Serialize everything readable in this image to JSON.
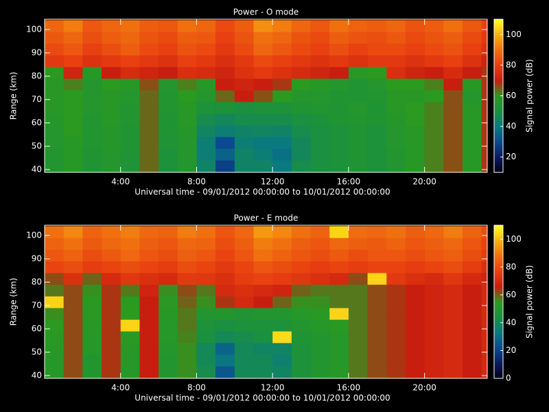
{
  "chart_data": [
    {
      "type": "heatmap",
      "title": "Power - O mode",
      "xlabel": "Universal time - 09/01/2012 00:00:00 to 10/01/2012 00:00:00",
      "ylabel": "Range (km)",
      "colorbar_label": "Signal power (dB)",
      "xlim": [
        0,
        23.3
      ],
      "ylim": [
        38.8,
        104.4
      ],
      "zlim": [
        10,
        110
      ],
      "xticks": [
        {
          "value": 4,
          "label": "4:00"
        },
        {
          "value": 8,
          "label": "8:00"
        },
        {
          "value": 12,
          "label": "12:00"
        },
        {
          "value": 16,
          "label": "16:00"
        },
        {
          "value": 20,
          "label": "20:00"
        }
      ],
      "yticks": [
        40,
        50,
        60,
        70,
        80,
        90,
        100
      ],
      "zticks": [
        20,
        40,
        60,
        80,
        100
      ],
      "colorscale": [
        "#000010",
        "#0a1a60",
        "#0a4a90",
        "#0a7a80",
        "#1a9040",
        "#2a9a20",
        "#c81e10",
        "#e84010",
        "#f07010",
        "#f8b010",
        "#ffff20"
      ],
      "x_bins": [
        0,
        1,
        2,
        3,
        4,
        5,
        6,
        7,
        8,
        9,
        10,
        11,
        12,
        13,
        14,
        15,
        16,
        17,
        18,
        19,
        20,
        21,
        22,
        23,
        23.3
      ],
      "y_bins": [
        39,
        44,
        49,
        54,
        59,
        64,
        69,
        74,
        79,
        84,
        89,
        94,
        99,
        104
      ],
      "z": [
        [
          55,
          58,
          54,
          56,
          53,
          64,
          52,
          56,
          44,
          28,
          44,
          44,
          40,
          48,
          50,
          52,
          54,
          52,
          55,
          58,
          62,
          66,
          58,
          68
        ],
        [
          55,
          58,
          54,
          56,
          53,
          64,
          52,
          56,
          42,
          35,
          44,
          42,
          38,
          46,
          50,
          52,
          54,
          52,
          55,
          58,
          62,
          66,
          58,
          68
        ],
        [
          56,
          58,
          55,
          57,
          54,
          64,
          53,
          56,
          42,
          30,
          42,
          40,
          40,
          46,
          50,
          52,
          54,
          52,
          56,
          58,
          62,
          66,
          58,
          68
        ],
        [
          56,
          60,
          55,
          57,
          54,
          64,
          54,
          57,
          45,
          42,
          44,
          45,
          44,
          48,
          50,
          52,
          54,
          52,
          56,
          58,
          62,
          66,
          58,
          68
        ],
        [
          57,
          60,
          55,
          58,
          55,
          64,
          54,
          58,
          48,
          46,
          48,
          48,
          48,
          50,
          52,
          54,
          55,
          54,
          57,
          60,
          62,
          66,
          58,
          68
        ],
        [
          58,
          60,
          56,
          58,
          55,
          64,
          55,
          58,
          52,
          52,
          50,
          52,
          52,
          54,
          55,
          54,
          56,
          54,
          58,
          60,
          62,
          66,
          58,
          68
        ],
        [
          58,
          60,
          56,
          58,
          56,
          64,
          55,
          60,
          56,
          64,
          70,
          66,
          60,
          56,
          56,
          54,
          54,
          55,
          58,
          58,
          60,
          66,
          56,
          68
        ],
        [
          58,
          62,
          56,
          60,
          58,
          66,
          56,
          62,
          58,
          70,
          72,
          70,
          68,
          60,
          58,
          56,
          54,
          56,
          60,
          60,
          62,
          70,
          58,
          68
        ],
        [
          60,
          72,
          58,
          70,
          74,
          72,
          70,
          75,
          74,
          72,
          76,
          78,
          76,
          74,
          72,
          70,
          58,
          60,
          75,
          72,
          70,
          74,
          70,
          68
        ],
        [
          78,
          80,
          76,
          78,
          80,
          78,
          76,
          80,
          78,
          75,
          78,
          82,
          80,
          78,
          76,
          78,
          76,
          78,
          78,
          76,
          78,
          80,
          76,
          72
        ],
        [
          82,
          85,
          80,
          83,
          86,
          82,
          80,
          84,
          82,
          78,
          82,
          88,
          85,
          82,
          80,
          83,
          80,
          82,
          82,
          80,
          82,
          84,
          80,
          76
        ],
        [
          85,
          88,
          83,
          86,
          88,
          84,
          82,
          86,
          85,
          80,
          84,
          90,
          88,
          84,
          82,
          86,
          84,
          83,
          85,
          82,
          84,
          86,
          82,
          78
        ],
        [
          88,
          92,
          85,
          88,
          90,
          86,
          85,
          90,
          88,
          82,
          86,
          95,
          92,
          88,
          85,
          90,
          87,
          86,
          88,
          84,
          86,
          90,
          85,
          80
        ]
      ]
    },
    {
      "type": "heatmap",
      "title": "Power - E mode",
      "xlabel": "Universal time - 09/01/2012 00:00:00 to 10/01/2012 00:00:00",
      "ylabel": "Range (km)",
      "colorbar_label": "Signal power (dB)",
      "xlim": [
        0,
        23.3
      ],
      "ylim": [
        38.8,
        104.4
      ],
      "zlim": [
        0,
        110
      ],
      "xticks": [
        {
          "value": 4,
          "label": "4:00"
        },
        {
          "value": 8,
          "label": "8:00"
        },
        {
          "value": 12,
          "label": "12:00"
        },
        {
          "value": 16,
          "label": "16:00"
        },
        {
          "value": 20,
          "label": "20:00"
        }
      ],
      "yticks": [
        40,
        50,
        60,
        70,
        80,
        90,
        100
      ],
      "zticks": [
        0,
        20,
        40,
        60,
        80,
        100
      ],
      "colorscale": [
        "#000010",
        "#0a1a60",
        "#0a4a90",
        "#0a7a80",
        "#1a9040",
        "#2a9a20",
        "#c81e10",
        "#e84010",
        "#f07010",
        "#f8b010",
        "#ffff20"
      ],
      "x_bins": [
        0,
        1,
        2,
        3,
        4,
        5,
        6,
        7,
        8,
        9,
        10,
        11,
        12,
        13,
        14,
        15,
        16,
        17,
        18,
        19,
        20,
        21,
        22,
        23,
        23.3
      ],
      "y_bins": [
        39,
        44,
        49,
        54,
        59,
        64,
        69,
        74,
        79,
        84,
        89,
        94,
        99,
        104
      ],
      "z": [
        [
          52,
          62,
          50,
          64,
          52,
          66,
          50,
          56,
          42,
          25,
          40,
          40,
          38,
          46,
          50,
          52,
          58,
          62,
          64,
          66,
          68,
          70,
          66,
          70
        ],
        [
          52,
          62,
          50,
          64,
          52,
          66,
          50,
          56,
          40,
          32,
          40,
          40,
          36,
          46,
          50,
          52,
          58,
          62,
          64,
          66,
          68,
          70,
          66,
          70
        ],
        [
          53,
          62,
          52,
          64,
          53,
          66,
          51,
          56,
          40,
          28,
          40,
          38,
          38,
          46,
          50,
          52,
          58,
          62,
          64,
          66,
          68,
          70,
          66,
          70
        ],
        [
          54,
          62,
          52,
          64,
          54,
          66,
          52,
          57,
          44,
          40,
          42,
          44,
          105,
          48,
          50,
          52,
          58,
          62,
          64,
          66,
          68,
          70,
          66,
          70
        ],
        [
          55,
          62,
          53,
          64,
          104,
          66,
          52,
          58,
          46,
          44,
          46,
          46,
          46,
          50,
          52,
          54,
          58,
          62,
          64,
          66,
          68,
          70,
          66,
          70
        ],
        [
          56,
          62,
          54,
          64,
          55,
          66,
          53,
          58,
          50,
          50,
          48,
          50,
          50,
          52,
          54,
          104,
          58,
          62,
          64,
          66,
          68,
          70,
          66,
          70
        ],
        [
          104,
          62,
          54,
          64,
          55,
          66,
          54,
          60,
          56,
          64,
          70,
          66,
          60,
          56,
          56,
          58,
          58,
          62,
          64,
          66,
          68,
          70,
          66,
          70
        ],
        [
          58,
          62,
          56,
          64,
          58,
          68,
          56,
          62,
          58,
          70,
          72,
          70,
          68,
          60,
          58,
          58,
          58,
          62,
          64,
          66,
          68,
          70,
          66,
          70
        ],
        [
          62,
          72,
          60,
          70,
          74,
          72,
          70,
          75,
          74,
          72,
          76,
          78,
          76,
          74,
          72,
          70,
          62,
          104,
          75,
          72,
          70,
          74,
          70,
          68
        ],
        [
          78,
          80,
          76,
          78,
          80,
          78,
          76,
          80,
          78,
          75,
          78,
          82,
          80,
          78,
          76,
          78,
          76,
          78,
          78,
          76,
          78,
          80,
          76,
          72
        ],
        [
          82,
          85,
          80,
          83,
          86,
          82,
          80,
          84,
          82,
          78,
          82,
          88,
          85,
          82,
          80,
          83,
          80,
          82,
          82,
          80,
          82,
          84,
          80,
          76
        ],
        [
          85,
          88,
          83,
          86,
          88,
          84,
          82,
          86,
          85,
          80,
          84,
          90,
          88,
          84,
          82,
          86,
          84,
          83,
          85,
          82,
          84,
          86,
          82,
          78
        ],
        [
          88,
          92,
          85,
          88,
          90,
          86,
          85,
          90,
          88,
          82,
          86,
          95,
          92,
          88,
          85,
          104,
          87,
          86,
          88,
          84,
          86,
          90,
          85,
          80
        ]
      ]
    }
  ]
}
